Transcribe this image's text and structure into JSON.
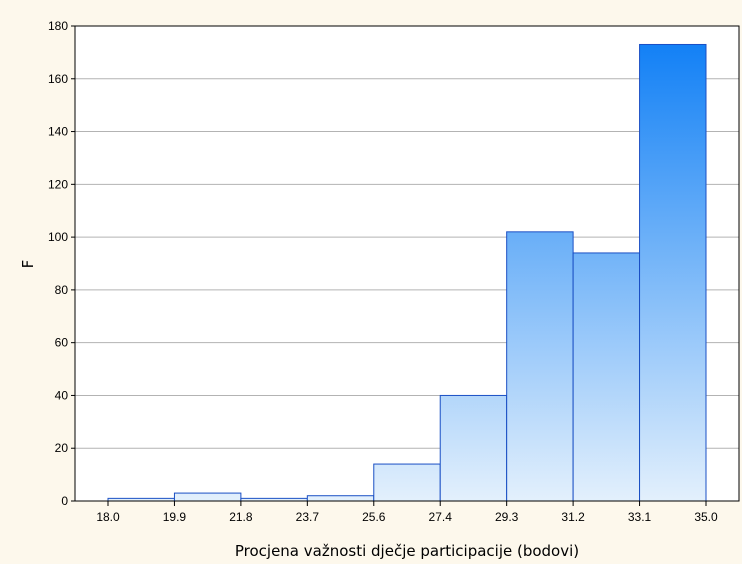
{
  "chart_data": {
    "type": "bar",
    "subtype": "histogram",
    "title": "",
    "xlabel": "Procjena važnosti dječje participacije (bodovi)",
    "ylabel": "F",
    "bin_edges": [
      "18.0",
      "19.9",
      "21.8",
      "23.7",
      "25.6",
      "27.4",
      "29.3",
      "31.2",
      "33.1",
      "35.0"
    ],
    "values": [
      1,
      3,
      1,
      2,
      14,
      40,
      102,
      94,
      173
    ],
    "ylim": [
      0,
      180
    ],
    "yticks": [
      0,
      20,
      40,
      60,
      80,
      100,
      120,
      140,
      160,
      180
    ],
    "grid": "horizontal",
    "colors": {
      "bar_top": "#0a7cf5",
      "bar_bottom": "#e3f0fc",
      "bar_stroke": "#1a4fc4",
      "plot_bg": "#ffffff",
      "page_bg": "#fdf8ec",
      "grid": "#b3b3b3"
    }
  }
}
